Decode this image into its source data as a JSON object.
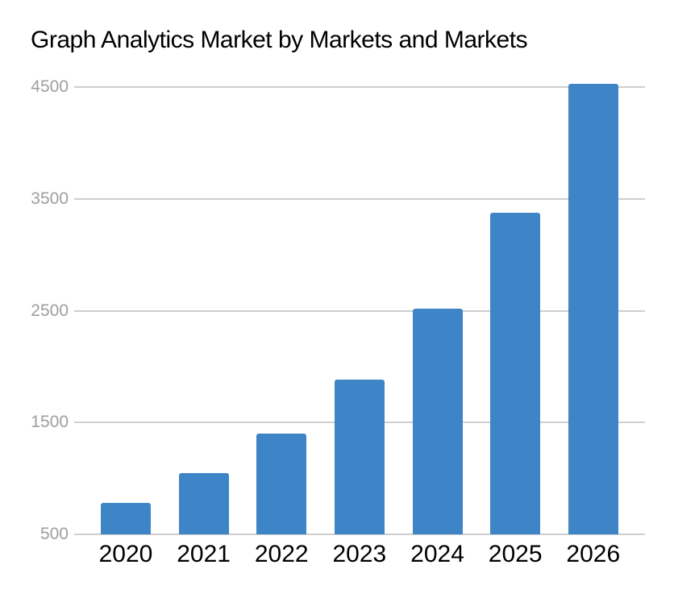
{
  "chart_data": {
    "type": "bar",
    "title": "Graph Analytics Market by Markets and Markets",
    "categories": [
      "2020",
      "2021",
      "2022",
      "2023",
      "2024",
      "2025",
      "2026"
    ],
    "values": [
      782,
      1048,
      1404,
      1882,
      2522,
      3379,
      4528
    ],
    "xlabel": "",
    "ylabel": "",
    "ylim": [
      500,
      4700
    ],
    "yticks": [
      500,
      1500,
      2500,
      3500,
      4500
    ],
    "grid": true,
    "legend_position": "none",
    "colors": {
      "bar": "#3D85C6",
      "gridline": "#CFCFCF",
      "ytick_label": "#9E9E9E",
      "xtick_label": "#000000",
      "title": "#000000",
      "background": "#FFFFFF"
    }
  }
}
